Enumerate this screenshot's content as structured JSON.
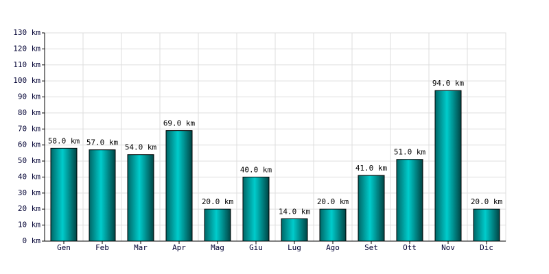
{
  "chart_data": {
    "type": "bar",
    "categories": [
      "Gen",
      "Feb",
      "Mar",
      "Apr",
      "Mag",
      "Giu",
      "Lug",
      "Ago",
      "Set",
      "Ott",
      "Nov",
      "Dic"
    ],
    "values": [
      58,
      57,
      54,
      69,
      20,
      40,
      14,
      20,
      41,
      51,
      94,
      20
    ],
    "value_labels": [
      "58.0 km",
      "57.0 km",
      "54.0 km",
      "69.0 km",
      "20.0 km",
      "40.0 km",
      "14.0 km",
      "20.0 km",
      "41.0 km",
      "51.0 km",
      "94.0 km",
      "20.0 km"
    ],
    "color": "#00cccc",
    "ylim": [
      0,
      130
    ],
    "yticks": [
      {
        "value": 0,
        "label": "0 km"
      },
      {
        "value": 10,
        "label": "10 km"
      },
      {
        "value": 20,
        "label": "20 km"
      },
      {
        "value": 30,
        "label": "30 km"
      },
      {
        "value": 40,
        "label": "40 km"
      },
      {
        "value": 50,
        "label": "50 km"
      },
      {
        "value": 60,
        "label": "60 km"
      },
      {
        "value": 70,
        "label": "70 km"
      },
      {
        "value": 80,
        "label": "80 km"
      },
      {
        "value": 90,
        "label": "90 km"
      },
      {
        "value": 100,
        "label": "100 km"
      },
      {
        "value": 110,
        "label": "110 km"
      },
      {
        "value": 120,
        "label": "120 km"
      },
      {
        "value": 130,
        "label": "130 km"
      }
    ],
    "grid": true
  }
}
